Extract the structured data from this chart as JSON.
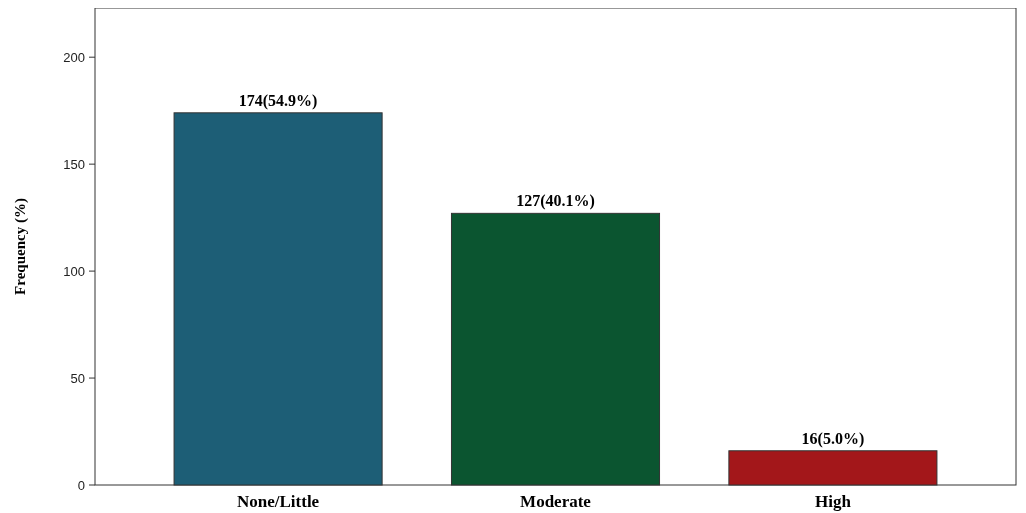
{
  "chart_data": {
    "type": "bar",
    "ylabel": "Frequency (%)",
    "categories": [
      "None/Little",
      "Moderate",
      "High"
    ],
    "values": [
      174,
      127,
      16
    ],
    "colors": [
      "#1d5e76",
      "#0b5530",
      "#a3171a"
    ],
    "value_labels": [
      "174(54.9%)",
      "127(40.1%)",
      "16(5.0%)"
    ],
    "ylim": [
      0,
      223
    ],
    "yticks": [
      0,
      50,
      100,
      150,
      200
    ],
    "grid": false
  }
}
